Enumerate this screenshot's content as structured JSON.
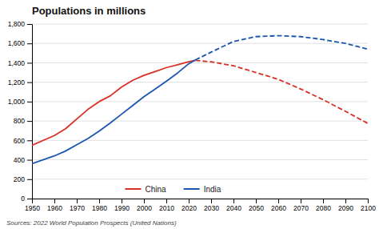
{
  "chart_data": {
    "type": "line",
    "title": "Populations in millions",
    "source": "Sources: 2022 World Population Prospects (United Nations)",
    "series": [
      {
        "name": "China",
        "color": "#d93025",
        "line_style": "solid",
        "x": [
          1950,
          1960,
          1965,
          1970,
          1975,
          1980,
          1985,
          1990,
          1995,
          2000,
          2005,
          2010,
          2015,
          2020,
          2023
        ],
        "values": [
          550,
          650,
          720,
          820,
          920,
          1000,
          1060,
          1150,
          1220,
          1270,
          1310,
          1350,
          1380,
          1410,
          1425
        ]
      },
      {
        "color": "#d93025",
        "line_style": "dashed",
        "x": [
          2023,
          2030,
          2040,
          2050,
          2060,
          2070,
          2080,
          2090,
          2100
        ],
        "values": [
          1425,
          1410,
          1370,
          1300,
          1230,
          1130,
          1020,
          900,
          775
        ]
      },
      {
        "name": "India",
        "color": "#1a56b0",
        "line_style": "solid",
        "x": [
          1950,
          1960,
          1965,
          1970,
          1975,
          1980,
          1985,
          1990,
          1995,
          2000,
          2005,
          2010,
          2015,
          2020,
          2023
        ],
        "values": [
          360,
          440,
          490,
          555,
          620,
          695,
          780,
          870,
          960,
          1050,
          1130,
          1210,
          1295,
          1390,
          1430
        ]
      },
      {
        "color": "#1a56b0",
        "line_style": "dashed",
        "x": [
          2023,
          2030,
          2040,
          2050,
          2060,
          2070,
          2080,
          2090,
          2100
        ],
        "values": [
          1430,
          1510,
          1620,
          1670,
          1680,
          1670,
          1640,
          1600,
          1540
        ]
      }
    ],
    "xlim": [
      1950,
      2100
    ],
    "xticks": [
      1950,
      1960,
      1970,
      1980,
      1990,
      2000,
      2010,
      2020,
      2030,
      2040,
      2050,
      2060,
      2070,
      2080,
      2090,
      2100
    ],
    "ylim": [
      0,
      1800
    ],
    "yticks": [
      0,
      200,
      400,
      600,
      800,
      {
        "value": 1000,
        "label": "1,000"
      },
      {
        "value": 1200,
        "label": "1,200"
      },
      {
        "value": 1400,
        "label": "1,400"
      },
      {
        "value": 1600,
        "label": "1,600"
      },
      {
        "value": 1800,
        "label": "1,800"
      }
    ],
    "grid": true,
    "legend": "bottom"
  }
}
